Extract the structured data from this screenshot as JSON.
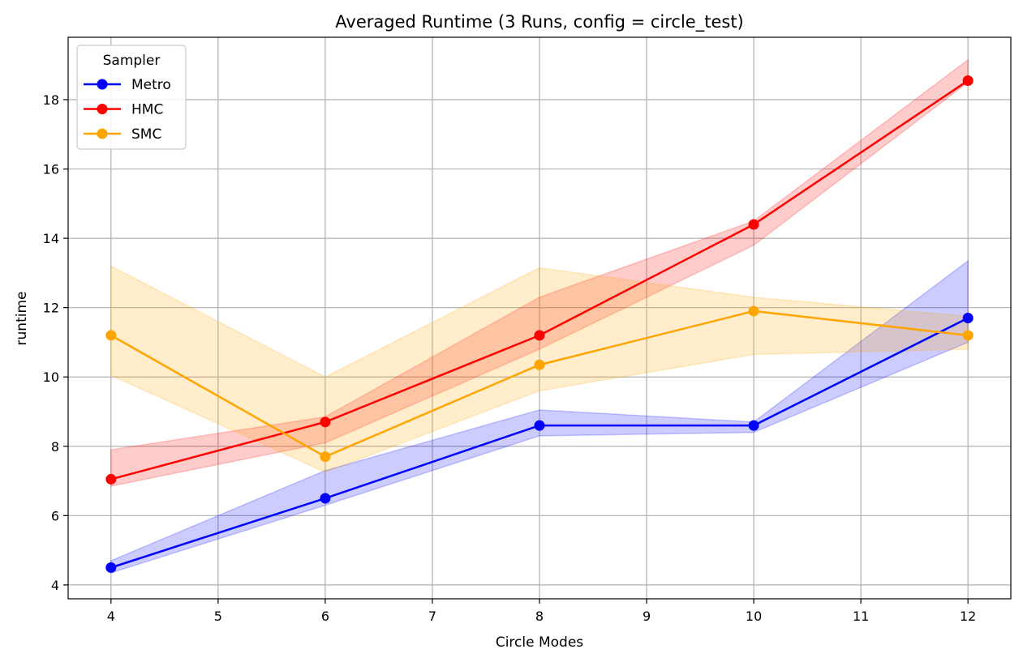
{
  "chart_data": {
    "type": "line",
    "title": "Averaged Runtime (3 Runs, config = circle_test)",
    "xlabel": "Circle Modes",
    "ylabel": "runtime",
    "xlim": [
      3.6,
      12.4
    ],
    "ylim": [
      3.6,
      19.8
    ],
    "xticks": [
      4,
      5,
      6,
      7,
      8,
      9,
      10,
      11,
      12
    ],
    "yticks": [
      4,
      6,
      8,
      10,
      12,
      14,
      16,
      18
    ],
    "grid": true,
    "legend": {
      "title": "Sampler",
      "placement": "upper-left"
    },
    "x": [
      4,
      6,
      8,
      10,
      12
    ],
    "series": [
      {
        "name": "Metro",
        "color": "#0000ff",
        "values": [
          4.5,
          6.5,
          8.6,
          8.6,
          11.7
        ],
        "band_low": [
          4.35,
          6.3,
          8.3,
          8.4,
          11.0
        ],
        "band_high": [
          4.7,
          7.3,
          9.05,
          8.7,
          13.35
        ]
      },
      {
        "name": "HMC",
        "color": "#ff0000",
        "values": [
          7.05,
          8.7,
          11.2,
          14.4,
          18.55
        ],
        "band_low": [
          6.85,
          8.1,
          10.8,
          13.8,
          18.5
        ],
        "band_high": [
          7.9,
          8.85,
          12.3,
          14.5,
          19.15
        ]
      },
      {
        "name": "SMC",
        "color": "#ffa500",
        "values": [
          11.2,
          7.7,
          10.35,
          11.9,
          11.2
        ],
        "band_low": [
          10.05,
          7.25,
          9.6,
          10.65,
          10.8
        ],
        "band_high": [
          13.2,
          10.0,
          13.15,
          12.3,
          11.75
        ]
      }
    ]
  }
}
